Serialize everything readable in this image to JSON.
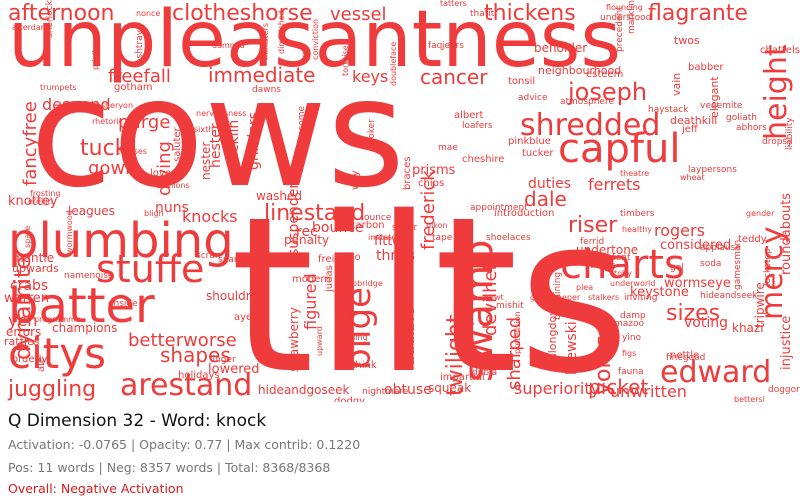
{
  "caption": {
    "title": "Q Dimension 32 - Word: knock",
    "stats": "Activation: -0.0765 | Opacity: 0.77 | Max contrib: 0.1220",
    "counts": "Pos: 11 words | Neg: 8357 words | Total: 8368/8368",
    "overall": "Overall: Negative Activation"
  },
  "colors": {
    "word": "#ef3b3b",
    "title": "#111111",
    "stats": "#777777",
    "overall": "#d81b1b"
  },
  "words": [
    "cows",
    "tilts",
    "unpleasantness",
    "plumbing",
    "batter",
    "citys",
    "swamp",
    "capful",
    "charts",
    "bilge",
    "stuffe",
    "edward",
    "mercy",
    "height",
    "shredded",
    "joseph",
    "arestand",
    "afternoon",
    "clotheshorse",
    "thickens",
    "flagrante",
    "immediate",
    "cancer",
    "freefall",
    "dynamite",
    "linestand",
    "shapes",
    "juggling",
    "yorks",
    "sizes",
    "dale",
    "riser",
    "rogers",
    "twilight",
    "devilhell",
    "sharped",
    "picket",
    "unwritten",
    "superiority",
    "betterworse",
    "fancyfree",
    "purge",
    "tuck",
    "gowk",
    "diving",
    "knocks",
    "ferrets",
    "duties",
    "frederick",
    "vessel",
    "despond",
    "keys",
    "keystone",
    "voting",
    "brewski",
    "considered",
    "wormseye",
    "obtuse",
    "squeak",
    "hideandgoseek",
    "lowered",
    "holidays",
    "figured",
    "audible",
    "prisms",
    "thrills",
    "fittest",
    "alongdown",
    "crabs",
    "warren",
    "yen",
    "errors",
    "champions",
    "leagues",
    "upwards",
    "mantle",
    "rattles",
    "knottey",
    "penalty",
    "washed",
    "nuns",
    "grinders",
    "ducklin",
    "hester",
    "nester",
    "suspenders",
    "rec",
    "bounce",
    "gtfo",
    "freight",
    "boo",
    "judas",
    "strawberry",
    "shouldnt",
    "brotherly",
    "ayes",
    "orderly",
    "ale",
    "twos",
    "jeff",
    "deathkill",
    "elegant",
    "roundabouts",
    "injustice",
    "chattels",
    "tripwire",
    "khazi",
    "nettle",
    "teddy",
    "undertone",
    "neighbourhood",
    "tonsil",
    "esteem",
    "pinkblue",
    "tucker",
    "cheshire",
    "chips",
    "wily",
    "saluter",
    "gotham",
    "lover",
    "modern",
    "onside",
    "linger",
    "nightmare",
    "impartial",
    "seethink",
    "dodgy",
    "dubia",
    "finegood",
    "doggone",
    "intent",
    "ferrid",
    "beholder",
    "precedent",
    "vain",
    "babber",
    "goliath",
    "abhors",
    "dropsy",
    "liability",
    "vegemite",
    "haystack",
    "atmosphere",
    "advice",
    "albert",
    "loafers",
    "mae",
    "sheer",
    "carbon",
    "ounce",
    "nikon",
    "imitates",
    "tape",
    "shoelaces",
    "introduction",
    "bargaining",
    "timbers",
    "gender",
    "applause",
    "soda",
    "gel",
    "lockstep",
    "inviting",
    "damp",
    "mazoo",
    "yino",
    "hideandseek",
    "fauna",
    "gamesman",
    "afterdark",
    "sherlock",
    "privileges",
    "ashtray",
    "tortoise",
    "doubleface",
    "thatit",
    "jeers",
    "faq",
    "tatters",
    "nonce",
    "damned",
    "ministers",
    "conviction",
    "diminished",
    "flouncing",
    "understood",
    "markline",
    "mhsheryon",
    "rhetoric",
    "trumpets",
    "courses",
    "opinions",
    "bligh",
    "frosting",
    "erekin",
    "spate",
    "wormwood",
    "nervousness",
    "sixth",
    "dawns",
    "asome",
    "broker",
    "braces",
    "appointment",
    "laypersons",
    "wheat",
    "theatre",
    "healthy",
    "programme",
    "namenoise",
    "scran",
    "spanish",
    "nebbridge",
    "autumn",
    "upward",
    "lodging",
    "pretension",
    "mishit",
    "plea",
    "underworld",
    "ticket",
    "stalkers",
    "figs",
    "nowt",
    "gamekeeper",
    "toby",
    "bettersl",
    "habit",
    "pam"
  ]
}
